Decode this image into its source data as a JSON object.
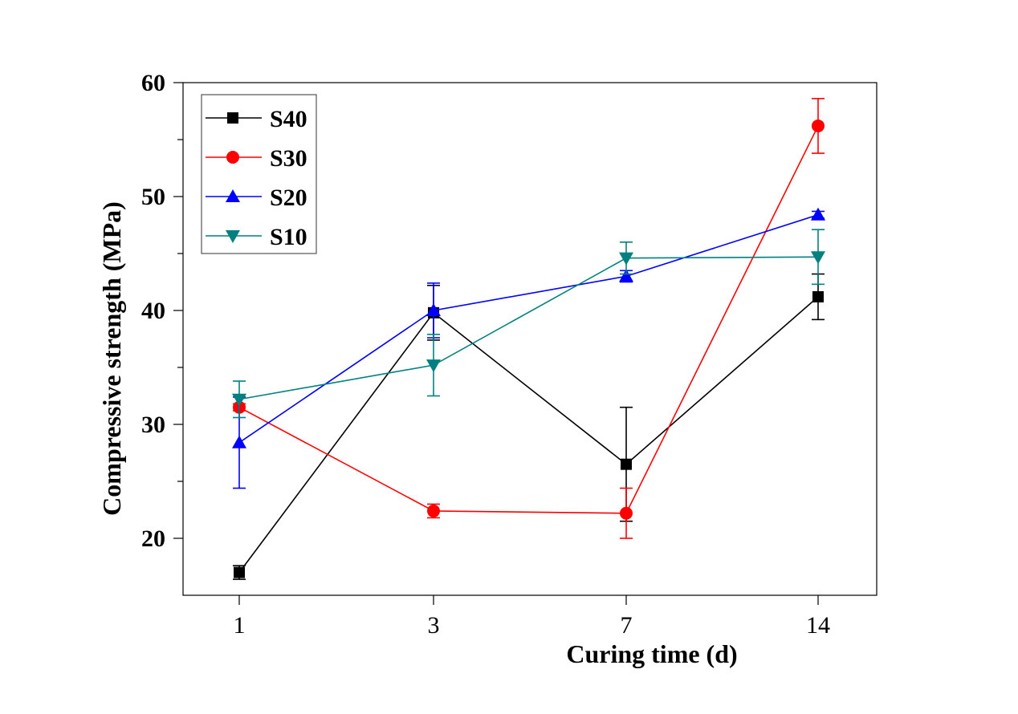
{
  "chart_data": {
    "type": "line",
    "title": "",
    "xlabel": "Curing time (d)",
    "ylabel": "Compressive strength (MPa)",
    "categories": [
      "1",
      "3",
      "7",
      "14"
    ],
    "ylim": [
      15,
      60
    ],
    "yticks": [
      20,
      30,
      40,
      50,
      60
    ],
    "yminor_ticks": [
      25,
      35,
      45,
      55
    ],
    "grid": false,
    "legend_position": "top-left",
    "series": [
      {
        "name": "S40",
        "color": "#000000",
        "marker": "square",
        "values": [
          17.0,
          39.8,
          26.5,
          41.2
        ],
        "errors": [
          0.6,
          2.4,
          5.0,
          2.0
        ]
      },
      {
        "name": "S30",
        "color": "#ff0000",
        "marker": "circle",
        "values": [
          31.5,
          22.4,
          22.2,
          56.2
        ],
        "errors": [
          0.3,
          0.6,
          2.2,
          2.4
        ]
      },
      {
        "name": "S20",
        "color": "#0000ff",
        "marker": "triangle-up",
        "values": [
          28.4,
          40.0,
          43.0,
          48.4
        ],
        "errors": [
          4.0,
          2.4,
          0.5,
          0.3
        ]
      },
      {
        "name": "S10",
        "color": "#008080",
        "marker": "triangle-down",
        "values": [
          32.2,
          35.2,
          44.6,
          44.7
        ],
        "errors": [
          1.6,
          2.7,
          1.4,
          2.4
        ]
      }
    ]
  }
}
